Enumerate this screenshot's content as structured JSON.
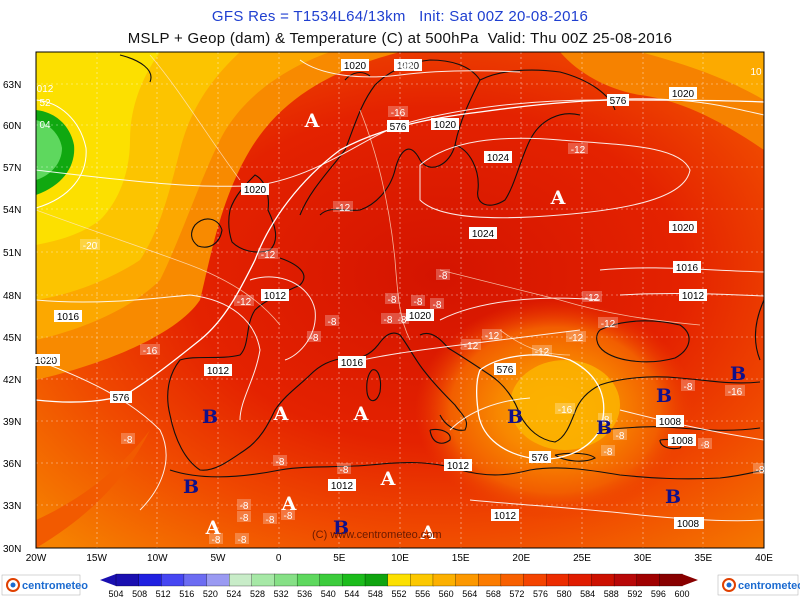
{
  "header": {
    "title_line1": "GFS Res = T1534L64/13km   Init: Sat 00Z 20-08-2016",
    "title_line2": "MSLP + Geop (dam) & Temperature (C) at 500hPa  Valid: Thu 00Z 25-08-2016"
  },
  "axes": {
    "lat_labels": [
      "63N",
      "60N",
      "57N",
      "54N",
      "51N",
      "48N",
      "45N",
      "42N",
      "39N",
      "36N",
      "33N",
      "30N"
    ],
    "lon_labels": [
      "20W",
      "15W",
      "10W",
      "5W",
      "0",
      "5E",
      "10E",
      "15E",
      "20E",
      "25E",
      "30E",
      "35E",
      "40E"
    ]
  },
  "colorbar": {
    "values": [
      "504",
      "508",
      "512",
      "516",
      "520",
      "524",
      "528",
      "532",
      "536",
      "540",
      "544",
      "548",
      "552",
      "556",
      "560",
      "564",
      "568",
      "572",
      "576",
      "580",
      "584",
      "588",
      "592",
      "596",
      "600"
    ],
    "colors": [
      "#1a0fb0",
      "#2020e0",
      "#4646f2",
      "#6c6cf2",
      "#9a9af2",
      "#c8ecc8",
      "#a6e8a6",
      "#86e086",
      "#5ed85e",
      "#3ccc3c",
      "#1cbc1c",
      "#10a410",
      "#fce000",
      "#fcc800",
      "#fcb000",
      "#fc9800",
      "#fc7c00",
      "#f86000",
      "#f44400",
      "#ec2c00",
      "#e01c00",
      "#cc1000",
      "#b80808",
      "#a00000",
      "#880000"
    ]
  },
  "branding": {
    "logo_left": "centrometeo",
    "logo_right": "centrometeo",
    "watermark": "(C) www.centrometeo.com"
  },
  "isobar_labels": [
    {
      "t": "1020"
    },
    {
      "t": "1020"
    },
    {
      "t": "1020"
    },
    {
      "t": "1020"
    },
    {
      "t": "1020"
    },
    {
      "t": "1020"
    },
    {
      "t": "1020"
    },
    {
      "t": "1024"
    },
    {
      "t": "1024"
    },
    {
      "t": "1016"
    },
    {
      "t": "1016"
    },
    {
      "t": "1016"
    },
    {
      "t": "1012"
    },
    {
      "t": "1012"
    },
    {
      "t": "1012"
    },
    {
      "t": "1012"
    },
    {
      "t": "1012"
    },
    {
      "t": "1012"
    },
    {
      "t": "1012"
    },
    {
      "t": "1008"
    },
    {
      "t": "1008"
    },
    {
      "t": "1008"
    },
    {
      "t": "576"
    },
    {
      "t": "576"
    },
    {
      "t": "576"
    },
    {
      "t": "576"
    },
    {
      "t": "576"
    },
    {
      "t": "1020"
    }
  ],
  "temp_labels": [
    {
      "t": "-20"
    },
    {
      "t": "-20"
    },
    {
      "t": "-16"
    },
    {
      "t": "-16"
    },
    {
      "t": "-12"
    },
    {
      "t": "-12"
    },
    {
      "t": "-12"
    },
    {
      "t": "-12"
    },
    {
      "t": "-12"
    },
    {
      "t": "-12"
    },
    {
      "t": "-12"
    },
    {
      "t": "-12"
    },
    {
      "t": "-12"
    },
    {
      "t": "-12"
    },
    {
      "t": "-16"
    },
    {
      "t": "-8"
    },
    {
      "t": "-8"
    },
    {
      "t": "-8"
    },
    {
      "t": "-8"
    },
    {
      "t": "-8"
    },
    {
      "t": "-8"
    },
    {
      "t": "-8"
    },
    {
      "t": "-8"
    },
    {
      "t": "-8"
    },
    {
      "t": "-8"
    },
    {
      "t": "-8"
    },
    {
      "t": "-8"
    },
    {
      "t": "-8"
    },
    {
      "t": "-8"
    },
    {
      "t": "-8"
    },
    {
      "t": "-8"
    },
    {
      "t": "-8"
    },
    {
      "t": "-8"
    },
    {
      "t": "-8"
    },
    {
      "t": "-8"
    },
    {
      "t": "-8"
    },
    {
      "t": "-16"
    },
    {
      "t": "-8"
    },
    {
      "t": "-8"
    }
  ],
  "pressure_centers": [
    {
      "t": "A"
    },
    {
      "t": "A"
    },
    {
      "t": "A"
    },
    {
      "t": "A"
    },
    {
      "t": "A"
    },
    {
      "t": "A"
    },
    {
      "t": "A"
    },
    {
      "t": "A"
    },
    {
      "t": "B"
    },
    {
      "t": "B"
    },
    {
      "t": "B"
    },
    {
      "t": "B"
    },
    {
      "t": "B"
    },
    {
      "t": "B"
    },
    {
      "t": "B"
    },
    {
      "t": "B"
    }
  ],
  "edge_labels": [
    {
      "t": "012"
    },
    {
      "t": "52"
    },
    {
      "t": "04"
    },
    {
      "t": "10"
    },
    {
      "t": "020"
    }
  ]
}
